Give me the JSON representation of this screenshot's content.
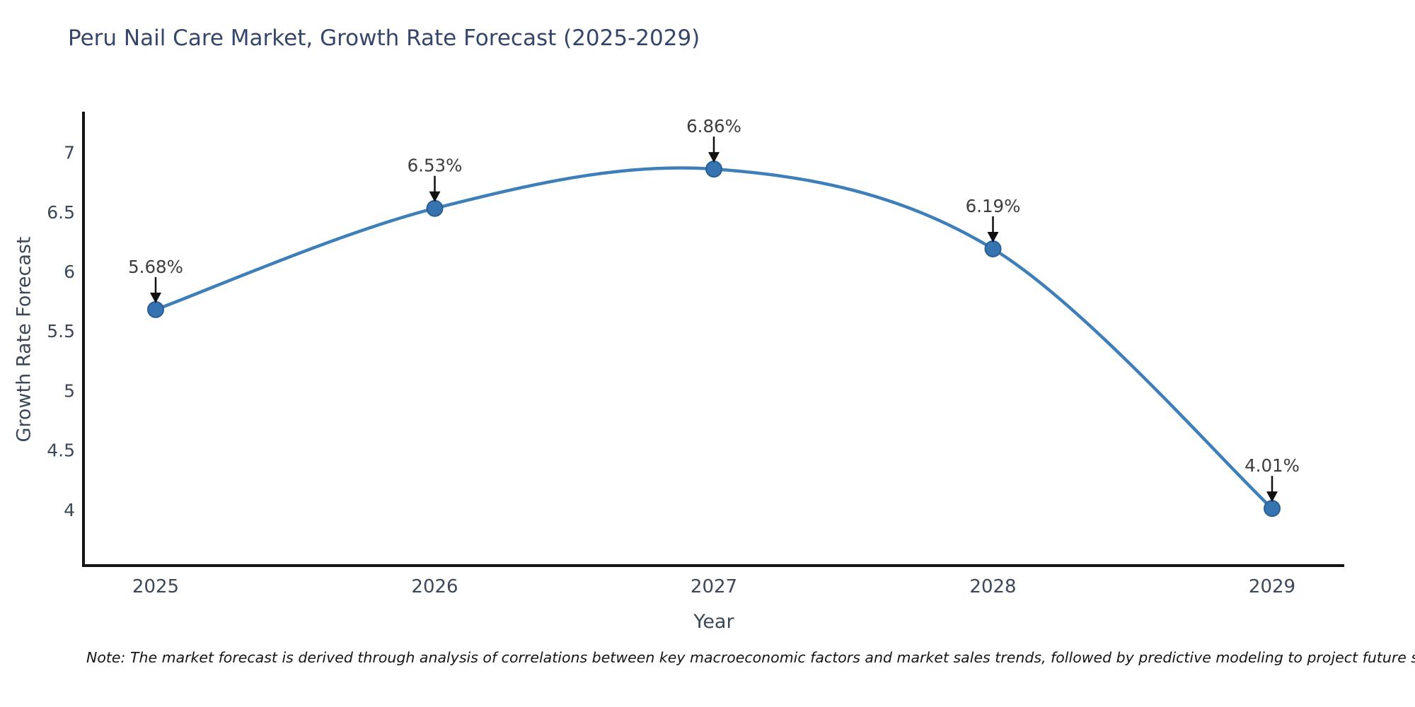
{
  "title": "Peru Nail Care Market, Growth Rate Forecast (2025-2029)",
  "note": "Note: The market forecast is derived through analysis of correlations between key macroeconomic factors and market sales trends, followed by predictive modeling to project future sales",
  "chart_data": {
    "type": "line",
    "title": "Peru Nail Care Market, Growth Rate Forecast (2025-2029)",
    "xlabel": "Year",
    "ylabel": "Growth Rate Forecast",
    "x": [
      2025,
      2026,
      2027,
      2028,
      2029
    ],
    "values": [
      5.68,
      6.53,
      6.86,
      6.19,
      4.01
    ],
    "point_labels": [
      "5.68%",
      "6.53%",
      "6.86%",
      "6.19%",
      "4.01%"
    ],
    "yticks": [
      4,
      4.5,
      5,
      5.5,
      6,
      6.5,
      7
    ],
    "ylim": [
      3.53,
      7.33
    ],
    "line_shape": "spline",
    "grid": false,
    "legend": "none",
    "colors": {
      "background": "#ffffff",
      "line": "#3e7eb9",
      "marker_fill": "#3573b1",
      "marker_edge": "#2b5f94",
      "axis_line": "#131313",
      "title_text": "#36466b",
      "axis_text": "#3b4858",
      "annotation_text": "#3d3d3d",
      "arrow": "#111111",
      "note_text": "#151515"
    }
  }
}
